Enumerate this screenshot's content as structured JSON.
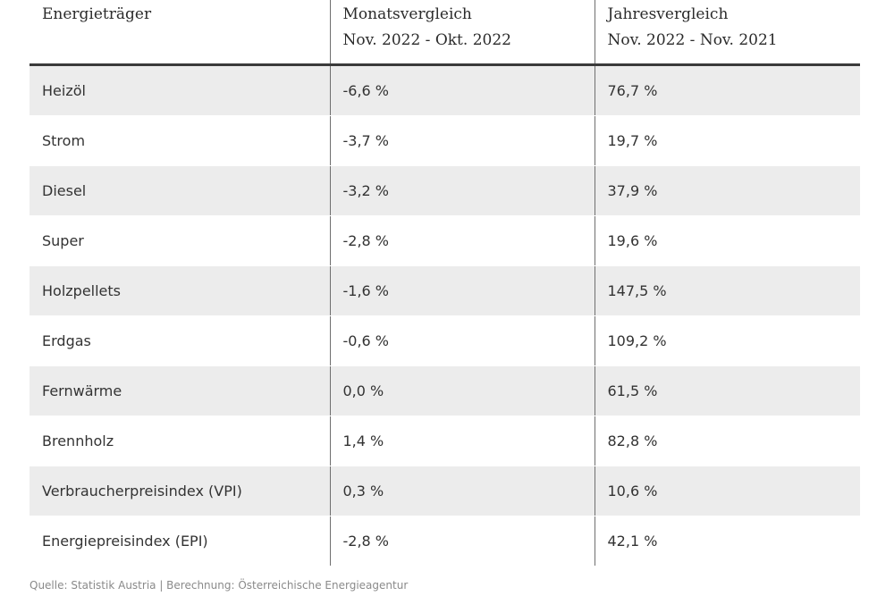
{
  "table": {
    "headers": [
      {
        "line1": "Energieträger",
        "line2": ""
      },
      {
        "line1": "Monatsvergleich",
        "line2": "Nov. 2022 - Okt. 2022"
      },
      {
        "line1": "Jahresvergleich",
        "line2": "Nov. 2022 - Nov. 2021"
      }
    ],
    "rows": [
      {
        "carrier": "Heizöl",
        "monthly": "-6,6 %",
        "yearly": "76,7 %"
      },
      {
        "carrier": "Strom",
        "monthly": "-3,7 %",
        "yearly": "19,7 %"
      },
      {
        "carrier": "Diesel",
        "monthly": "-3,2 %",
        "yearly": "37,9 %"
      },
      {
        "carrier": "Super",
        "monthly": "-2,8 %",
        "yearly": "19,6 %"
      },
      {
        "carrier": "Holzpellets",
        "monthly": "-1,6 %",
        "yearly": "147,5 %"
      },
      {
        "carrier": "Erdgas",
        "monthly": "-0,6 %",
        "yearly": "109,2 %"
      },
      {
        "carrier": "Fernwärme",
        "monthly": "0,0 %",
        "yearly": "61,5 %"
      },
      {
        "carrier": "Brennholz",
        "monthly": "1,4 %",
        "yearly": "82,8 %"
      },
      {
        "carrier": "Verbraucherpreisindex (VPI)",
        "monthly": "0,3 %",
        "yearly": "10,6 %"
      },
      {
        "carrier": "Energiepreisindex (EPI)",
        "monthly": "-2,8 %",
        "yearly": "42,1 %"
      }
    ]
  },
  "source": "Quelle: Statistik Austria | Berechnung: Österreichische Energieagentur",
  "colors": {
    "row_stripe": "#ececec",
    "text": "#2b2b2b",
    "header_rule": "#3a3a3a",
    "source_text": "#8a8a8a"
  }
}
